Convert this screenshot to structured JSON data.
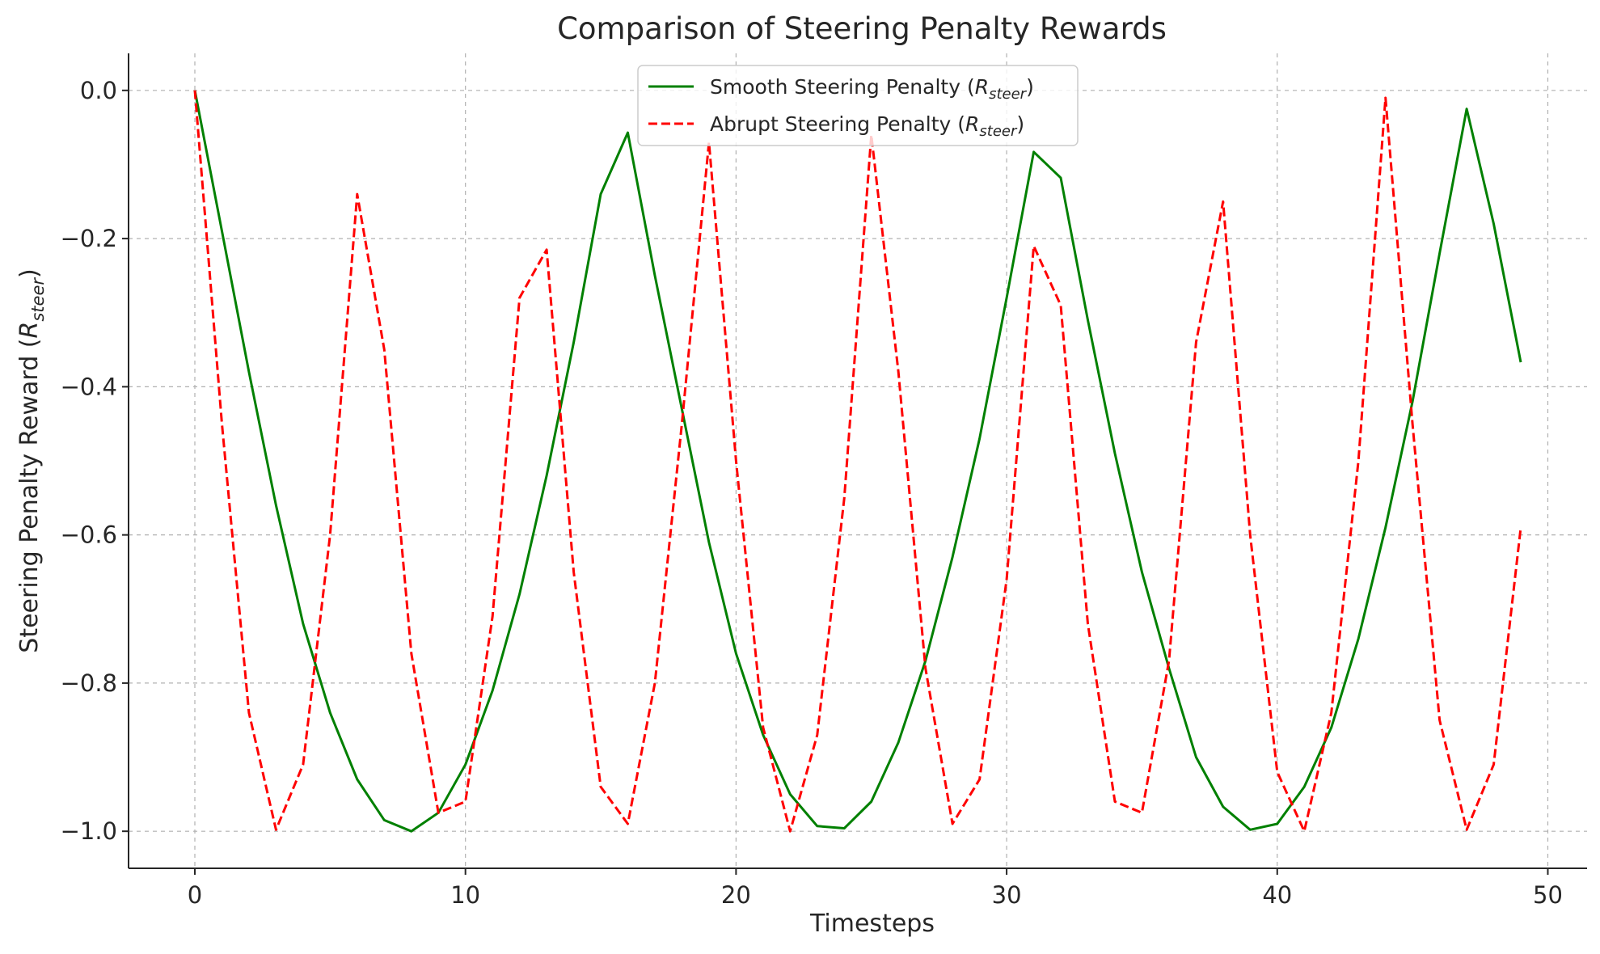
{
  "chart_data": {
    "type": "line",
    "title": "Comparison of Steering Penalty Rewards",
    "xlabel": "Timesteps",
    "ylabel_main": "Steering Penalty Reward (",
    "ylabel_R": "R",
    "ylabel_sub": "steer",
    "ylabel_close": ")",
    "xlim": [
      -2.45,
      51.45
    ],
    "ylim": [
      -1.05,
      0.05
    ],
    "xticks": [
      0,
      10,
      20,
      30,
      40,
      50
    ],
    "xtick_labels": [
      "0",
      "10",
      "20",
      "30",
      "40",
      "50"
    ],
    "yticks": [
      0.0,
      -0.2,
      -0.4,
      -0.6,
      -0.8,
      -1.0
    ],
    "ytick_labels": [
      "0.0",
      "−0.2",
      "−0.4",
      "−0.6",
      "−0.8",
      "−1.0"
    ],
    "grid": true,
    "legend_position": "top-center",
    "x": [
      0,
      1,
      2,
      3,
      4,
      5,
      6,
      7,
      8,
      9,
      10,
      11,
      12,
      13,
      14,
      15,
      16,
      17,
      18,
      19,
      20,
      21,
      22,
      23,
      24,
      25,
      26,
      27,
      28,
      29,
      30,
      31,
      32,
      33,
      34,
      35,
      36,
      37,
      38,
      39,
      40,
      41,
      42,
      43,
      44,
      45,
      46,
      47,
      48,
      49
    ],
    "series": [
      {
        "name": "Smooth Steering Penalty",
        "legend_main": "Smooth Steering Penalty (",
        "legend_R": "R",
        "legend_sub": "steer",
        "legend_close": ")",
        "color": "#008000",
        "style": "solid",
        "values": [
          0.0,
          -0.19,
          -0.38,
          -0.56,
          -0.72,
          -0.84,
          -0.93,
          -0.985,
          -1.0,
          -0.975,
          -0.91,
          -0.81,
          -0.68,
          -0.52,
          -0.34,
          -0.14,
          -0.057,
          -0.25,
          -0.43,
          -0.61,
          -0.76,
          -0.87,
          -0.95,
          -0.993,
          -0.996,
          -0.96,
          -0.88,
          -0.77,
          -0.63,
          -0.47,
          -0.28,
          -0.083,
          -0.118,
          -0.31,
          -0.49,
          -0.65,
          -0.78,
          -0.9,
          -0.967,
          -0.998,
          -0.99,
          -0.94,
          -0.86,
          -0.74,
          -0.59,
          -0.42,
          -0.22,
          -0.025,
          -0.18,
          -0.367
        ]
      },
      {
        "name": "Abrupt Steering Penalty",
        "legend_main": "Abrupt Steering Penalty (",
        "legend_R": "R",
        "legend_sub": "steer",
        "legend_close": ")",
        "color": "#ff0000",
        "style": "dashed",
        "values": [
          0.0,
          -0.45,
          -0.84,
          -0.998,
          -0.91,
          -0.6,
          -0.14,
          -0.35,
          -0.76,
          -0.975,
          -0.96,
          -0.71,
          -0.28,
          -0.215,
          -0.65,
          -0.94,
          -0.99,
          -0.8,
          -0.45,
          -0.07,
          -0.5,
          -0.86,
          -1.0,
          -0.87,
          -0.55,
          -0.06,
          -0.38,
          -0.78,
          -0.99,
          -0.93,
          -0.66,
          -0.21,
          -0.29,
          -0.72,
          -0.96,
          -0.975,
          -0.77,
          -0.34,
          -0.15,
          -0.6,
          -0.92,
          -1.0,
          -0.84,
          -0.5,
          -0.01,
          -0.45,
          -0.85,
          -0.998,
          -0.91,
          -0.59
        ]
      }
    ]
  }
}
